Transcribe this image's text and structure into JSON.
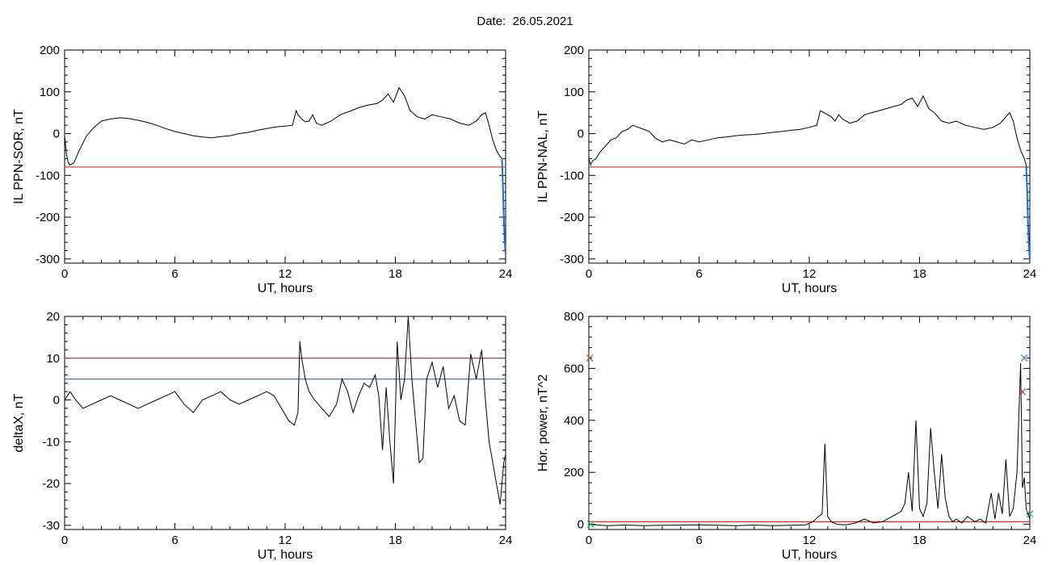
{
  "header": {
    "date_label": "Date:",
    "date_value": "26.05.2021"
  },
  "colors": {
    "trace": "#000000",
    "threshold_red": "#c0392b",
    "threshold_blue": "#2a7fd4",
    "extreme": "#1a6fe0",
    "marker_green": "#27ae60"
  },
  "chart_data": [
    {
      "type": "line",
      "id": "p1",
      "ylabel": "IL PPN-SOR, nT",
      "xlabel": "UT, hours",
      "xlim": [
        0,
        24
      ],
      "ylim": [
        -310,
        200
      ],
      "xticks": [
        0,
        6,
        12,
        18,
        24
      ],
      "yticks": [
        -300,
        -200,
        -100,
        0,
        100,
        200
      ],
      "thresholds": [
        {
          "value": -80,
          "color": "red"
        }
      ],
      "series": [
        {
          "x": [
            0,
            0.1,
            0.2,
            0.3,
            0.5,
            0.8,
            1.2,
            1.6,
            2.0,
            2.5,
            3.0,
            3.5,
            4.0,
            4.5,
            5.0,
            5.5,
            6.0,
            6.5,
            7.0,
            7.5,
            8.0,
            8.5,
            9.0,
            9.5,
            10.0,
            10.5,
            11.0,
            11.5,
            12.0,
            12.4,
            12.6,
            12.7,
            12.9,
            13.1,
            13.3,
            13.5,
            13.7,
            14.0,
            14.5,
            15.0,
            15.3,
            15.6,
            16.0,
            16.5,
            17.0,
            17.3,
            17.6,
            17.9,
            18.2,
            18.5,
            18.8,
            19.2,
            19.6,
            20.0,
            20.5,
            21.0,
            21.5,
            22.0,
            22.4,
            22.7,
            22.9,
            23.1,
            23.3,
            23.5,
            23.7,
            23.8
          ],
          "y": [
            -5,
            -50,
            -70,
            -75,
            -70,
            -40,
            -5,
            15,
            30,
            35,
            38,
            36,
            32,
            27,
            20,
            12,
            5,
            0,
            -5,
            -8,
            -10,
            -7,
            -5,
            0,
            3,
            8,
            12,
            16,
            18,
            20,
            55,
            45,
            35,
            28,
            30,
            45,
            25,
            20,
            30,
            45,
            50,
            55,
            62,
            68,
            72,
            80,
            95,
            75,
            110,
            90,
            55,
            40,
            35,
            45,
            40,
            35,
            25,
            20,
            30,
            45,
            50,
            20,
            -15,
            -40,
            -55,
            -60
          ]
        }
      ],
      "extreme_series": {
        "x": [
          23.8,
          23.85,
          23.9,
          23.95,
          24.0
        ],
        "y": [
          -60,
          -120,
          -200,
          -260,
          -290
        ]
      }
    },
    {
      "type": "line",
      "id": "p2",
      "ylabel": "IL PPN-NAL, nT",
      "xlabel": "UT, hours",
      "xlim": [
        0,
        24
      ],
      "ylim": [
        -310,
        200
      ],
      "xticks": [
        0,
        6,
        12,
        18,
        24
      ],
      "yticks": [
        -300,
        -200,
        -100,
        0,
        100,
        200
      ],
      "thresholds": [
        {
          "value": -80,
          "color": "red"
        }
      ],
      "series": [
        {
          "x": [
            0,
            0.1,
            0.2,
            0.4,
            0.6,
            0.9,
            1.2,
            1.5,
            1.8,
            2.1,
            2.4,
            2.7,
            3.0,
            3.3,
            3.6,
            4.0,
            4.4,
            4.8,
            5.2,
            5.6,
            6.0,
            6.5,
            7.0,
            7.5,
            8.0,
            8.5,
            9.0,
            9.5,
            10.0,
            10.5,
            11.0,
            11.5,
            12.0,
            12.4,
            12.6,
            12.8,
            13.0,
            13.2,
            13.4,
            13.6,
            13.8,
            14.2,
            14.6,
            15.0,
            15.4,
            15.8,
            16.2,
            16.6,
            17.0,
            17.3,
            17.6,
            17.9,
            18.2,
            18.5,
            18.8,
            19.2,
            19.6,
            20.0,
            20.5,
            21.0,
            21.5,
            22.0,
            22.4,
            22.7,
            22.9,
            23.1,
            23.3,
            23.5,
            23.7,
            23.8
          ],
          "y": [
            -60,
            -75,
            -65,
            -60,
            -45,
            -30,
            -15,
            -10,
            5,
            10,
            20,
            15,
            10,
            5,
            -10,
            -20,
            -15,
            -20,
            -25,
            -15,
            -20,
            -15,
            -10,
            -8,
            -5,
            -3,
            -2,
            0,
            3,
            5,
            8,
            10,
            15,
            20,
            55,
            50,
            45,
            40,
            30,
            45,
            35,
            25,
            30,
            45,
            50,
            55,
            60,
            65,
            70,
            80,
            85,
            65,
            90,
            60,
            50,
            30,
            25,
            30,
            20,
            15,
            10,
            15,
            25,
            40,
            50,
            30,
            -10,
            -40,
            -60,
            -75
          ]
        }
      ],
      "extreme_series": {
        "x": [
          23.8,
          23.85,
          23.9,
          23.95,
          24.0
        ],
        "y": [
          -75,
          -130,
          -210,
          -270,
          -300
        ]
      }
    },
    {
      "type": "line",
      "id": "p3",
      "ylabel": "deltaX, nT",
      "xlabel": "UT, hours",
      "xlim": [
        0,
        24
      ],
      "ylim": [
        -31,
        20
      ],
      "xticks": [
        0,
        6,
        12,
        18,
        24
      ],
      "yticks": [
        -30,
        -20,
        -10,
        0,
        10,
        20
      ],
      "thresholds": [
        {
          "value": 10,
          "color": "red"
        },
        {
          "value": 5,
          "color": "blue"
        }
      ],
      "series": [
        {
          "x": [
            0,
            0.3,
            0.6,
            1.0,
            1.5,
            2.0,
            2.5,
            3.0,
            3.5,
            4.0,
            4.5,
            5.0,
            5.5,
            6.0,
            6.5,
            7.0,
            7.5,
            8.0,
            8.5,
            9.0,
            9.5,
            10.0,
            10.5,
            11.0,
            11.4,
            11.8,
            12.2,
            12.5,
            12.7,
            12.8,
            12.9,
            13.1,
            13.3,
            13.6,
            14.0,
            14.4,
            14.8,
            15.1,
            15.4,
            15.7,
            16.0,
            16.3,
            16.6,
            16.9,
            17.1,
            17.3,
            17.5,
            17.7,
            17.9,
            18.1,
            18.3,
            18.5,
            18.7,
            18.9,
            19.1,
            19.3,
            19.5,
            19.7,
            20.0,
            20.3,
            20.6,
            20.9,
            21.2,
            21.5,
            21.8,
            22.1,
            22.4,
            22.7,
            22.9,
            23.1,
            23.3,
            23.5,
            23.7,
            23.9,
            24.0
          ],
          "y": [
            0,
            2,
            0,
            -2,
            -1,
            0,
            1,
            0,
            -1,
            -2,
            -1,
            0,
            1,
            2,
            -1,
            -3,
            0,
            1,
            2,
            0,
            -1,
            0,
            1,
            2,
            1,
            -2,
            -5,
            -6,
            -3,
            14,
            10,
            5,
            2,
            0,
            -2,
            -4,
            -1,
            5,
            2,
            -3,
            1,
            4,
            3,
            6,
            1,
            -12,
            3,
            -10,
            -20,
            14,
            0,
            5,
            20,
            5,
            -5,
            -15,
            -14,
            5,
            9,
            3,
            8,
            -2,
            1,
            -5,
            -6,
            11,
            5,
            12,
            0,
            -10,
            -15,
            -20,
            -25,
            -15,
            -13
          ]
        }
      ]
    },
    {
      "type": "line",
      "id": "p4",
      "ylabel": "Hor. power, nT^2",
      "xlabel": "UT, hours",
      "xlim": [
        0,
        24
      ],
      "ylim": [
        -20,
        800
      ],
      "xticks": [
        0,
        6,
        12,
        18,
        24
      ],
      "yticks": [
        0,
        200,
        400,
        600,
        800
      ],
      "thresholds": [
        {
          "value": 10,
          "color": "red"
        }
      ],
      "series": [
        {
          "x": [
            0,
            1,
            2,
            3,
            4,
            5,
            6,
            7,
            8,
            9,
            10,
            11,
            11.8,
            12.2,
            12.5,
            12.7,
            12.85,
            13.0,
            13.2,
            13.5,
            14.0,
            14.5,
            15.0,
            15.5,
            16.0,
            16.5,
            17.0,
            17.2,
            17.4,
            17.6,
            17.8,
            18.0,
            18.2,
            18.4,
            18.6,
            18.8,
            19.0,
            19.2,
            19.4,
            19.6,
            19.8,
            20.0,
            20.3,
            20.6,
            21.0,
            21.3,
            21.6,
            21.9,
            22.1,
            22.3,
            22.5,
            22.7,
            22.9,
            23.1,
            23.3,
            23.5,
            23.6,
            23.7,
            23.8,
            24.0
          ],
          "y": [
            0,
            -5,
            -3,
            -5,
            -4,
            -3,
            -2,
            -4,
            -5,
            -3,
            -5,
            -4,
            -2,
            10,
            30,
            40,
            310,
            30,
            10,
            0,
            -2,
            5,
            20,
            5,
            10,
            30,
            50,
            80,
            200,
            50,
            400,
            60,
            30,
            80,
            370,
            200,
            60,
            270,
            100,
            30,
            10,
            20,
            5,
            30,
            10,
            20,
            5,
            120,
            20,
            120,
            40,
            250,
            30,
            60,
            200,
            620,
            140,
            180,
            60,
            20
          ]
        }
      ],
      "markers": [
        {
          "x": 0.05,
          "y": 640,
          "symbol": "x",
          "color": "red"
        },
        {
          "x": 0.1,
          "y": 0,
          "symbol": "x",
          "color": "green"
        },
        {
          "x": 23.7,
          "y": 640,
          "symbol": "x",
          "color": "blue"
        },
        {
          "x": 23.6,
          "y": 510,
          "symbol": "x",
          "color": "red"
        },
        {
          "x": 24.0,
          "y": 40,
          "symbol": "x",
          "color": "green"
        }
      ]
    }
  ]
}
